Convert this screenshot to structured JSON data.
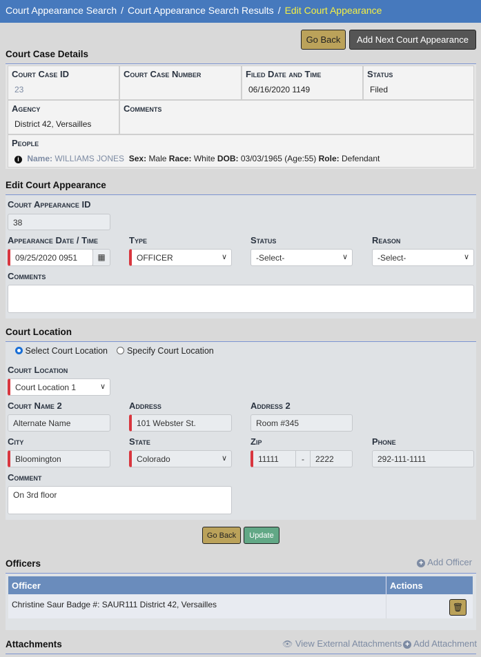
{
  "breadcrumb": [
    "Court Appearance Search",
    "Court Appearance Search Results",
    "Edit Court Appearance"
  ],
  "actions": {
    "go_back": "Go Back",
    "add_next": "Add Next Court Appearance"
  },
  "case_details": {
    "title": "Court Case Details",
    "court_case_id_label": "Court Case ID",
    "court_case_id": "23",
    "court_case_number_label": "Court Case Number",
    "court_case_number": "",
    "filed_label": "Filed Date and Time",
    "filed": "06/16/2020 1149",
    "status_label": "Status",
    "status": "Filed",
    "agency_label": "Agency",
    "agency": "District 42, Versailles",
    "comments_label": "Comments",
    "comments": "",
    "people_label": "People",
    "person": {
      "name_label": "Name:",
      "name": "WILLIAMS JONES",
      "sex_label": "Sex:",
      "sex": "Male",
      "race_label": "Race:",
      "race": "White",
      "dob_label": "DOB:",
      "dob": "03/03/1965 (Age:55)",
      "role_label": "Role:",
      "role": "Defendant"
    }
  },
  "edit": {
    "title": "Edit Court Appearance",
    "id_label": "Court Appearance ID",
    "id": "38",
    "date_label": "Appearance Date / Time",
    "date": "09/25/2020 0951",
    "type_label": "Type",
    "type": "OFFICER",
    "status_label": "Status",
    "status": "-Select-",
    "reason_label": "Reason",
    "reason": "-Select-",
    "comments_label": "Comments",
    "comments": ""
  },
  "location": {
    "title": "Court Location",
    "radio_select": "Select Court Location",
    "radio_specify": "Specify Court Location",
    "selected": "select",
    "location_label": "Court Location",
    "location": "Court Location 1",
    "name2_label": "Court Name 2",
    "name2": "Alternate Name",
    "address_label": "Address",
    "address": "101 Webster St.",
    "address2_label": "Address 2",
    "address2": "Room #345",
    "city_label": "City",
    "city": "Bloomington",
    "state_label": "State",
    "state": "Colorado",
    "zip_label": "Zip",
    "zip": "11111",
    "zip_sep": "-",
    "zip4": "2222",
    "phone_label": "Phone",
    "phone": "292-111-1111",
    "comment_label": "Comment",
    "comment": "On 3rd floor"
  },
  "form_buttons": {
    "go_back": "Go Back",
    "update": "Update"
  },
  "officers": {
    "title": "Officers",
    "add": "Add Officer",
    "columns": [
      "Officer",
      "Actions"
    ],
    "rows": [
      {
        "officer": "Christine Saur Badge #: SAUR111 District 42, Versailles"
      }
    ]
  },
  "attachments": {
    "title": "Attachments",
    "view_external": "View External Attachments",
    "add": "Add Attachment"
  }
}
